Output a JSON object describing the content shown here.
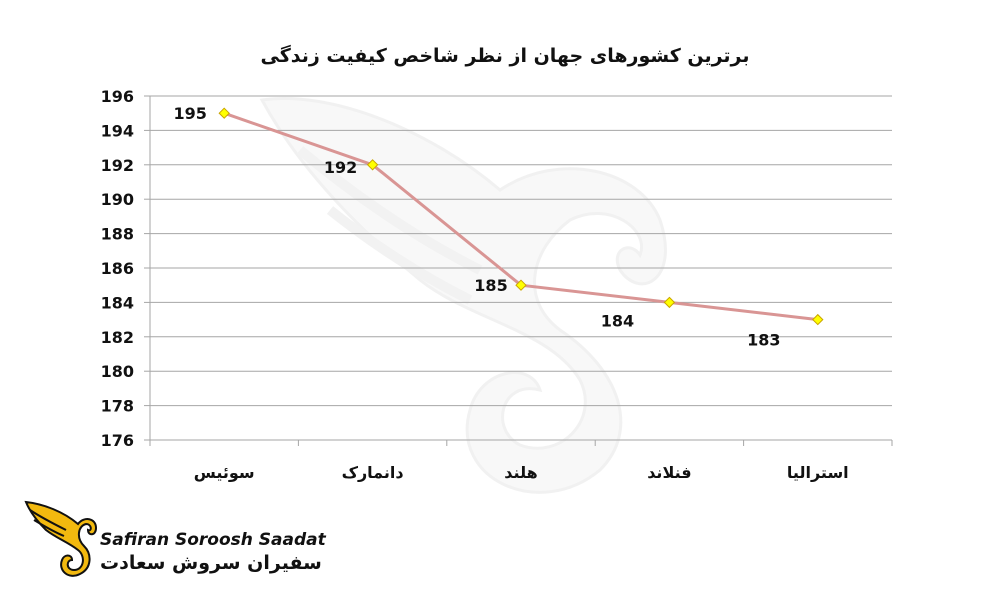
{
  "chart_data": {
    "type": "line",
    "title": "برترین کشورهای جهان از نظر شاخص کیفیت زندگی",
    "categories": [
      "سوئیس",
      "دانمارک",
      "هلند",
      "فنلاند",
      "استرالیا"
    ],
    "series": [
      {
        "values": [
          195,
          192,
          185,
          184,
          183
        ]
      }
    ],
    "data_labels": [
      "195",
      "192",
      "185",
      "184",
      "183"
    ],
    "y_ticks": [
      176,
      178,
      180,
      182,
      184,
      186,
      188,
      190,
      192,
      194,
      196
    ],
    "ylim": [
      176,
      196
    ],
    "grid": true,
    "legend": "none",
    "colors": {
      "line": "#d99594",
      "marker": "#ffff00",
      "marker_stroke": "#c9a400",
      "grid": "#a6a6a6",
      "text": "#111111"
    }
  },
  "logo": {
    "name_en": "Safiran Soroosh Saadat",
    "name_fa": "سفیران سروش سعادت",
    "colors": {
      "wing": "#f2b90f",
      "dark": "#111111"
    }
  }
}
